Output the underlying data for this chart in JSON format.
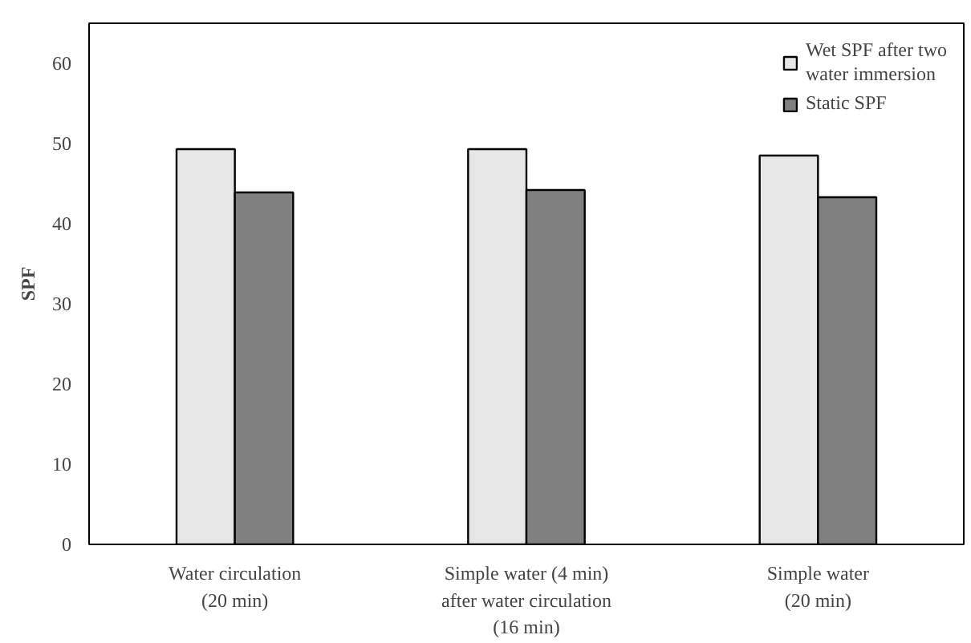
{
  "chart_data": {
    "type": "bar",
    "ylabel": "SPF",
    "categories": [
      "Water circulation\n(20 min)",
      "Simple water (4 min)\nafter water circulation\n(16 min)",
      "Simple water\n(20 min)"
    ],
    "series": [
      {
        "name": "Wet SPF after two\nwater immersion",
        "color": "#e6e6e6",
        "values": [
          49.3,
          49.3,
          48.5
        ]
      },
      {
        "name": "Static SPF",
        "color": "#808080",
        "values": [
          43.9,
          44.2,
          43.3
        ]
      }
    ],
    "ylim": [
      0,
      65
    ],
    "yticks": [
      0,
      10,
      20,
      30,
      40,
      50,
      60
    ],
    "grid": false,
    "legend": "top right"
  }
}
